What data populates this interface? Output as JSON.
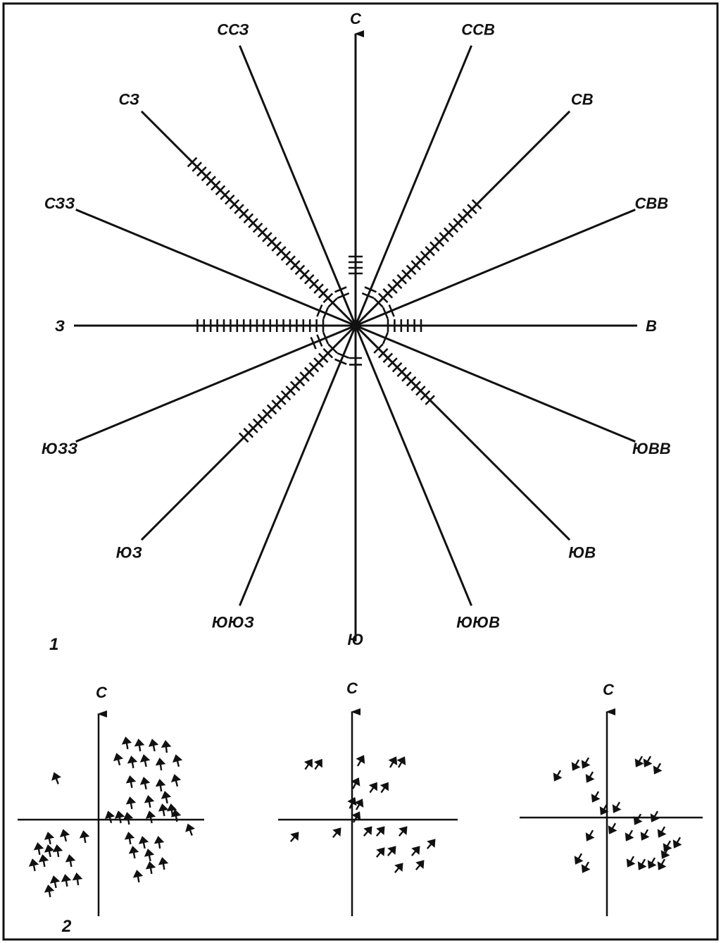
{
  "rose": {
    "north_label": "С",
    "directions": [
      {
        "label": "С",
        "bearing": 0,
        "ticks": 0
      },
      {
        "label": "ССВ",
        "bearing": 22.5,
        "ticks": 2
      },
      {
        "label": "СВ",
        "bearing": 45,
        "ticks": 22
      },
      {
        "label": "СВВ",
        "bearing": 67.5,
        "ticks": 2
      },
      {
        "label": "В",
        "bearing": 90,
        "ticks": 6
      },
      {
        "label": "ЮВВ",
        "bearing": 112.5,
        "ticks": 1
      },
      {
        "label": "ЮВ",
        "bearing": 135,
        "ticks": 12
      },
      {
        "label": "ЮЮВ",
        "bearing": 157.5,
        "ticks": 0
      },
      {
        "label": "Ю",
        "bearing": 180,
        "ticks": 2
      },
      {
        "label": "ЮЮЗ",
        "bearing": 202.5,
        "ticks": 2
      },
      {
        "label": "ЮЗ",
        "bearing": 225,
        "ticks": 20
      },
      {
        "label": "ЮЗЗ",
        "bearing": 247.5,
        "ticks": 3
      },
      {
        "label": "З",
        "bearing": 270,
        "ticks": 20
      },
      {
        "label": "СЗЗ",
        "bearing": 292.5,
        "ticks": 2
      },
      {
        "label": "СЗ",
        "bearing": 315,
        "ticks": 31
      },
      {
        "label": "ССЗ",
        "bearing": 337.5,
        "ticks": 2
      }
    ],
    "north_ticks": 4,
    "figure_number": "1"
  },
  "panels": {
    "figure_number": "2",
    "panel_a": {
      "north_label": "С",
      "arrow_directions": "north-northeast"
    },
    "panel_b": {
      "north_label": "С",
      "arrow_directions": "northeast"
    },
    "panel_c": {
      "north_label": "С",
      "arrow_directions": "southwest"
    }
  }
}
